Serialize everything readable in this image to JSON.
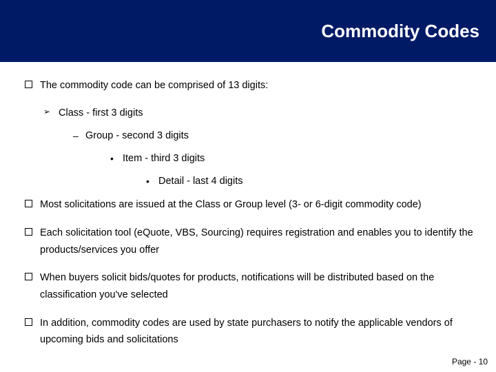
{
  "header": {
    "title": "Commodity Codes",
    "bg_color": "#001a66",
    "title_color": "#ffffff",
    "title_fontsize": 26
  },
  "content": {
    "bullet_items": [
      {
        "level": 0,
        "text": "The commodity code can be comprised of 13 digits:"
      },
      {
        "level": 1,
        "text": "Class - first 3 digits"
      },
      {
        "level": 2,
        "text": "Group - second 3 digits"
      },
      {
        "level": 3,
        "text": "Item - third 3 digits"
      },
      {
        "level": 4,
        "text": "Detail - last 4 digits"
      },
      {
        "level": 0,
        "text": "Most solicitations are issued at the Class or Group level (3- or 6-digit commodity code)"
      },
      {
        "level": 0,
        "text": "Each solicitation tool (eQuote, VBS, Sourcing) requires registration and enables you to identify the products/services you offer"
      },
      {
        "level": 0,
        "text": "When buyers solicit bids/quotes for products, notifications will be distributed based on the classification you've selected"
      },
      {
        "level": 0,
        "text": "In addition, commodity codes are used by state purchasers to notify the applicable vendors of upcoming bids and solicitations"
      }
    ],
    "body_fontsize": 14.5,
    "text_color": "#000000"
  },
  "footer": {
    "page_label": "Page - 10",
    "fontsize": 12
  },
  "background_color": "#ffffff"
}
